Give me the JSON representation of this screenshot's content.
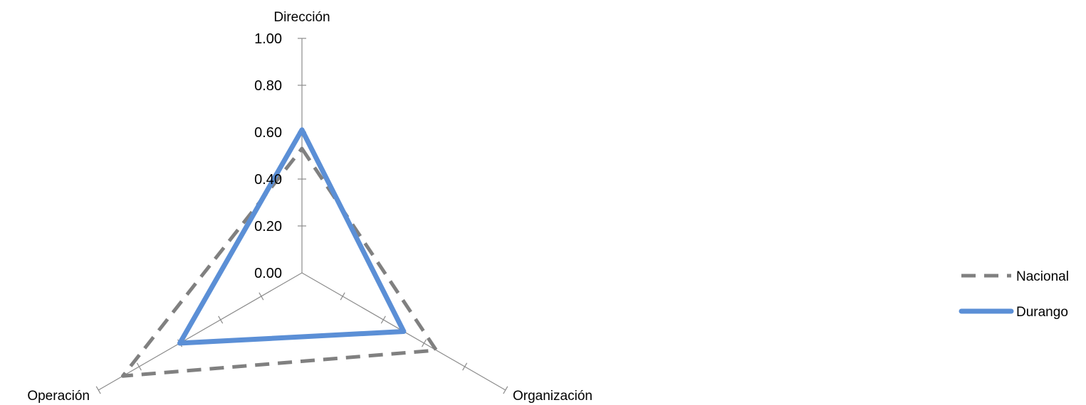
{
  "chart_data": {
    "type": "radar",
    "axes": [
      "Dirección",
      "Organización",
      "Operación"
    ],
    "r_ticks": [
      "1.00",
      "0.80",
      "0.60",
      "0.40",
      "0.20",
      "0.00"
    ],
    "r_tick_values": [
      1.0,
      0.8,
      0.6,
      0.4,
      0.2,
      0.0
    ],
    "rlim": [
      0,
      1
    ],
    "legend_position": "right",
    "series": [
      {
        "name": "Nacional",
        "values": [
          0.53,
          0.66,
          0.88
        ],
        "color": "#808080",
        "style": "dashed"
      },
      {
        "name": "Durango",
        "values": [
          0.61,
          0.5,
          0.6
        ],
        "color": "#5b8fd6",
        "style": "solid"
      }
    ]
  }
}
